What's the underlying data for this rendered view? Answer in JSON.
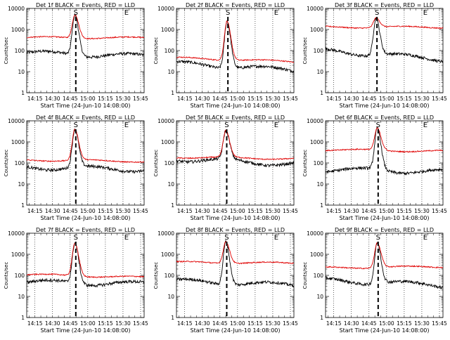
{
  "figure": {
    "ylabel": "Counts/sec",
    "xlabel": "Start Time (24-Jun-10 14:08:00)",
    "x_ticks": [
      "14:15",
      "14:30",
      "14:45",
      "15:00",
      "15:15",
      "15:30",
      "15:45"
    ],
    "y_ticks": [
      "1",
      "10",
      "100",
      "1000",
      "10000"
    ],
    "marker_start": "S",
    "marker_end": "E",
    "colors": {
      "events": "#000000",
      "lld": "#e00000",
      "axes": "#000000"
    }
  },
  "chart_data": [
    {
      "type": "line",
      "title": "Det 1f BLACK = Events, RED = LLD",
      "xlim": [
        "14:08",
        "15:48"
      ],
      "ylim": [
        1,
        10000
      ],
      "yscale": "log",
      "peak_time": "14:49",
      "series": [
        {
          "key": "events",
          "values": {
            "baseline": 80,
            "tail": 55,
            "peak": 5000
          }
        },
        {
          "key": "lld",
          "values": {
            "baseline": 420,
            "tail": 400,
            "peak": 5000
          }
        }
      ]
    },
    {
      "type": "line",
      "title": "Det 2f BLACK = Events, RED = LLD",
      "xlim": [
        "14:08",
        "15:48"
      ],
      "ylim": [
        1,
        10000
      ],
      "yscale": "log",
      "peak_time": "14:51",
      "series": [
        {
          "key": "events",
          "values": {
            "baseline": 25,
            "tail": 12,
            "peak": 2500
          }
        },
        {
          "key": "lld",
          "values": {
            "baseline": 45,
            "tail": 30,
            "peak": 2500
          }
        }
      ]
    },
    {
      "type": "line",
      "title": "Det 3f BLACK = Events, RED = LLD",
      "xlim": [
        "14:08",
        "15:48"
      ],
      "ylim": [
        1,
        10000
      ],
      "yscale": "log",
      "peak_time": "14:51",
      "series": [
        {
          "key": "events",
          "values": {
            "baseline": 100,
            "tail": 40,
            "peak": 3500
          }
        },
        {
          "key": "lld",
          "values": {
            "baseline": 1300,
            "tail": 1300,
            "peak": 3500
          }
        }
      ]
    },
    {
      "type": "line",
      "title": "Det 4f BLACK = Events, RED = LLD",
      "xlim": [
        "14:08",
        "15:48"
      ],
      "ylim": [
        1,
        10000
      ],
      "yscale": "log",
      "peak_time": "14:49",
      "series": [
        {
          "key": "events",
          "values": {
            "baseline": 65,
            "tail": 50,
            "peak": 4000
          }
        },
        {
          "key": "lld",
          "values": {
            "baseline": 140,
            "tail": 120,
            "peak": 4000
          }
        }
      ]
    },
    {
      "type": "line",
      "title": "Det 5f BLACK = Events, RED = LLD",
      "xlim": [
        "14:08",
        "15:48"
      ],
      "ylim": [
        1,
        10000
      ],
      "yscale": "log",
      "peak_time": "14:50",
      "series": [
        {
          "key": "events",
          "values": {
            "baseline": 160,
            "tail": 90,
            "peak": 3500
          }
        },
        {
          "key": "lld",
          "values": {
            "baseline": 190,
            "tail": 160,
            "peak": 3500
          }
        }
      ]
    },
    {
      "type": "line",
      "title": "Det 6f BLACK = Events, RED = LLD",
      "xlim": [
        "14:08",
        "15:48"
      ],
      "ylim": [
        1,
        10000
      ],
      "yscale": "log",
      "peak_time": "14:52",
      "series": [
        {
          "key": "events",
          "values": {
            "baseline": 50,
            "tail": 40,
            "peak": 4500
          }
        },
        {
          "key": "lld",
          "values": {
            "baseline": 430,
            "tail": 360,
            "peak": 4500
          }
        }
      ]
    },
    {
      "type": "line",
      "title": "Det 7f BLACK = Events, RED = LLD",
      "xlim": [
        "14:08",
        "15:48"
      ],
      "ylim": [
        1,
        10000
      ],
      "yscale": "log",
      "peak_time": "14:49",
      "series": [
        {
          "key": "events",
          "values": {
            "baseline": 50,
            "tail": 40,
            "peak": 3500
          }
        },
        {
          "key": "lld",
          "values": {
            "baseline": 110,
            "tail": 80,
            "peak": 3500
          }
        }
      ]
    },
    {
      "type": "line",
      "title": "Det 8f BLACK = Events, RED = LLD",
      "xlim": [
        "14:08",
        "15:48"
      ],
      "ylim": [
        1,
        10000
      ],
      "yscale": "log",
      "peak_time": "14:50",
      "series": [
        {
          "key": "events",
          "values": {
            "baseline": 55,
            "tail": 35,
            "peak": 4000
          }
        },
        {
          "key": "lld",
          "values": {
            "baseline": 420,
            "tail": 380,
            "peak": 4000
          }
        }
      ]
    },
    {
      "type": "line",
      "title": "Det 9f BLACK = Events, RED = LLD",
      "xlim": [
        "14:08",
        "15:48"
      ],
      "ylim": [
        1,
        10000
      ],
      "yscale": "log",
      "peak_time": "14:52",
      "series": [
        {
          "key": "events",
          "values": {
            "baseline": 60,
            "tail": 35,
            "peak": 3500
          }
        },
        {
          "key": "lld",
          "values": {
            "baseline": 230,
            "tail": 260,
            "peak": 3500
          }
        }
      ]
    }
  ]
}
